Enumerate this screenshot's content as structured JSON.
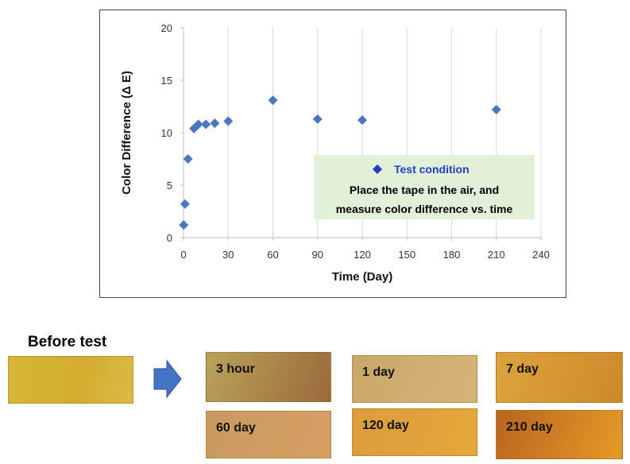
{
  "chart_data": {
    "type": "scatter",
    "xlabel": "Time (Day)",
    "ylabel": "Color Difference (Δ E)",
    "xlim": [
      0,
      240
    ],
    "ylim": [
      0,
      20
    ],
    "xticks": [
      "0",
      "30",
      "60",
      "90",
      "120",
      "150",
      "180",
      "210",
      "240"
    ],
    "yticks": [
      "0",
      "5",
      "10",
      "15",
      "20"
    ],
    "grid": "vertical",
    "marker": "diamond",
    "color": "#4a76c2",
    "points": [
      {
        "x": 0.125,
        "y": 1.2
      },
      {
        "x": 1,
        "y": 3.2
      },
      {
        "x": 3,
        "y": 7.5
      },
      {
        "x": 7,
        "y": 10.4
      },
      {
        "x": 10,
        "y": 10.8
      },
      {
        "x": 15,
        "y": 10.8
      },
      {
        "x": 21,
        "y": 10.9
      },
      {
        "x": 30,
        "y": 11.1
      },
      {
        "x": 60,
        "y": 13.1
      },
      {
        "x": 90,
        "y": 11.3
      },
      {
        "x": 120,
        "y": 11.2
      },
      {
        "x": 210,
        "y": 12.2
      }
    ],
    "annotation": {
      "marker_color": "#1f3fbf",
      "background": "#e2efd9",
      "title": "Test condition",
      "line1": "Place the tape in the air, and",
      "line2": "measure color difference vs. time"
    }
  },
  "samples": {
    "before_label": "Before test",
    "before_color": "#d8b536",
    "arrow_color": "#4472c4",
    "items": [
      {
        "label": "3 hour",
        "color_a": "#b9a25a",
        "color_b": "#9b6a3a"
      },
      {
        "label": "1 day",
        "color_a": "#c9a768",
        "color_b": "#d6b479"
      },
      {
        "label": "7 day",
        "color_a": "#dca43c",
        "color_b": "#cc8a2a"
      },
      {
        "label": "60 day",
        "color_a": "#c99a5c",
        "color_b": "#d6a063"
      },
      {
        "label": "120 day",
        "color_a": "#d99d3c",
        "color_b": "#e6a83b"
      },
      {
        "label": "210 day",
        "color_a": "#b9651f",
        "color_b": "#e59a26"
      }
    ]
  }
}
